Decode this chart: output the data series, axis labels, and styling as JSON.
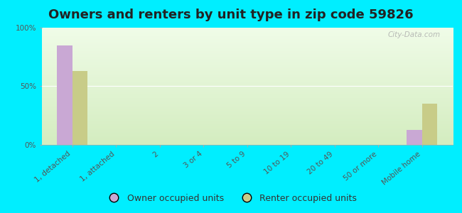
{
  "title": "Owners and renters by unit type in zip code 59826",
  "categories": [
    "1, detached",
    "1, attached",
    "2",
    "3 or 4",
    "5 to 9",
    "10 to 19",
    "20 to 49",
    "50 or more",
    "Mobile home"
  ],
  "owner_values": [
    85,
    0,
    0,
    0,
    0,
    0,
    0,
    0,
    13
  ],
  "renter_values": [
    63,
    0,
    0,
    0,
    0,
    0,
    0,
    0,
    35
  ],
  "owner_color": "#c9a8d4",
  "renter_color": "#c8cc88",
  "background_color": "#00eeff",
  "ylabel_ticks": [
    0,
    50,
    100
  ],
  "ylabel_labels": [
    "0%",
    "50%",
    "100%"
  ],
  "ylim": [
    0,
    100
  ],
  "bar_width": 0.35,
  "legend_owner": "Owner occupied units",
  "legend_renter": "Renter occupied units",
  "watermark": "City-Data.com",
  "title_fontsize": 13,
  "tick_fontsize": 7.5,
  "legend_fontsize": 9
}
